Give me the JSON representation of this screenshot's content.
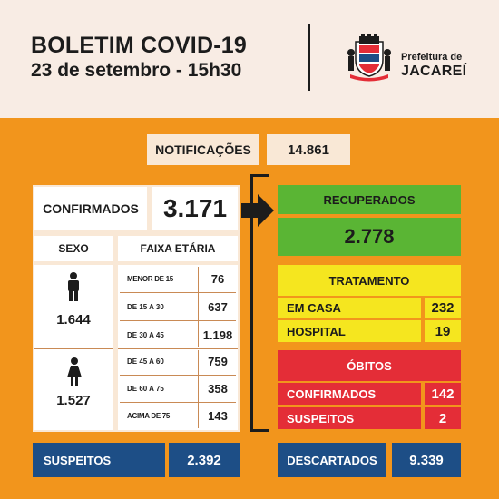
{
  "header": {
    "title": "BOLETIM COVID-19",
    "subtitle": "23 de setembro - 15h30",
    "prefeitura_line1": "Prefeitura de",
    "prefeitura_line2": "JACAREÍ"
  },
  "notificacoes": {
    "label": "NOTIFICAÇÕES",
    "value": "14.861"
  },
  "confirmados": {
    "label": "CONFIRMADOS",
    "value": "3.171",
    "sexo_label": "SEXO",
    "faixa_label": "FAIXA ETÁRIA",
    "male": {
      "total": "1.644",
      "ages": [
        {
          "range": "MENOR DE 15",
          "value": "76"
        },
        {
          "range": "DE 15 A 30",
          "value": "637"
        },
        {
          "range": "DE 30 A 45",
          "value": "1.198"
        }
      ]
    },
    "female": {
      "total": "1.527",
      "ages": [
        {
          "range": "DE 45 A 60",
          "value": "759"
        },
        {
          "range": "DE 60 A 75",
          "value": "358"
        },
        {
          "range": "ACIMA DE 75",
          "value": "143"
        }
      ]
    }
  },
  "recuperados": {
    "label": "RECUPERADOS",
    "value": "2.778"
  },
  "tratamento": {
    "label": "TRATAMENTO",
    "rows": [
      {
        "label": "EM CASA",
        "value": "232"
      },
      {
        "label": "HOSPITAL",
        "value": "19"
      }
    ]
  },
  "obitos": {
    "label": "ÓBITOS",
    "rows": [
      {
        "label": "CONFIRMADOS",
        "value": "142"
      },
      {
        "label": "SUSPEITOS",
        "value": "2"
      }
    ]
  },
  "suspeitos": {
    "label": "SUSPEITOS",
    "value": "2.392"
  },
  "descartados": {
    "label": "DESCARTADOS",
    "value": "9.339"
  },
  "colors": {
    "background": "#f2951c",
    "header": "#f8ece4",
    "recuperados": "#5ab534",
    "tratamento": "#f5e61f",
    "obitos": "#e42d37",
    "footer": "#1d4e86"
  },
  "icons": [
    "city-seal-icon",
    "male-person-icon",
    "female-person-icon",
    "arrow-right-icon"
  ]
}
